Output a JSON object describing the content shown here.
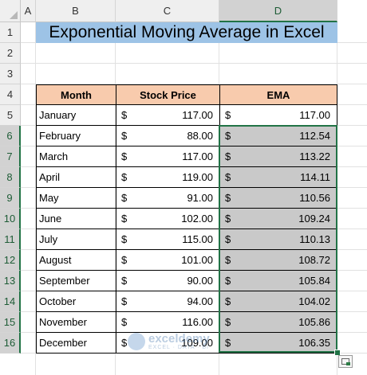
{
  "columns": [
    "A",
    "B",
    "C",
    "D"
  ],
  "rows": [
    "1",
    "2",
    "3",
    "4",
    "5",
    "6",
    "7",
    "8",
    "9",
    "10",
    "11",
    "12",
    "13",
    "14",
    "15",
    "16"
  ],
  "title": "Exponential Moving Average in Excel",
  "headers": {
    "month": "Month",
    "price": "Stock Price",
    "ema": "EMA"
  },
  "currency": "$",
  "table": [
    {
      "month": "January",
      "price": "117.00",
      "ema": "117.00"
    },
    {
      "month": "February",
      "price": "88.00",
      "ema": "112.54"
    },
    {
      "month": "March",
      "price": "117.00",
      "ema": "113.22"
    },
    {
      "month": "April",
      "price": "119.00",
      "ema": "114.11"
    },
    {
      "month": "May",
      "price": "91.00",
      "ema": "110.56"
    },
    {
      "month": "June",
      "price": "102.00",
      "ema": "109.24"
    },
    {
      "month": "July",
      "price": "115.00",
      "ema": "110.13"
    },
    {
      "month": "August",
      "price": "101.00",
      "ema": "108.72"
    },
    {
      "month": "September",
      "price": "90.00",
      "ema": "105.84"
    },
    {
      "month": "October",
      "price": "94.00",
      "ema": "104.02"
    },
    {
      "month": "November",
      "price": "116.00",
      "ema": "105.86"
    },
    {
      "month": "December",
      "price": "109.00",
      "ema": "106.35"
    }
  ],
  "watermark": {
    "name": "exceldemy",
    "tagline": "EXCEL · DATA · BI"
  },
  "icons": {
    "quick_analysis": "quick-analysis-icon",
    "fill_handle": "fill-handle-icon"
  },
  "colors": {
    "title_fill": "#9dc3e6",
    "header_fill": "#f8cbad",
    "selection": "#217346",
    "shade": "#c9c9c9"
  }
}
